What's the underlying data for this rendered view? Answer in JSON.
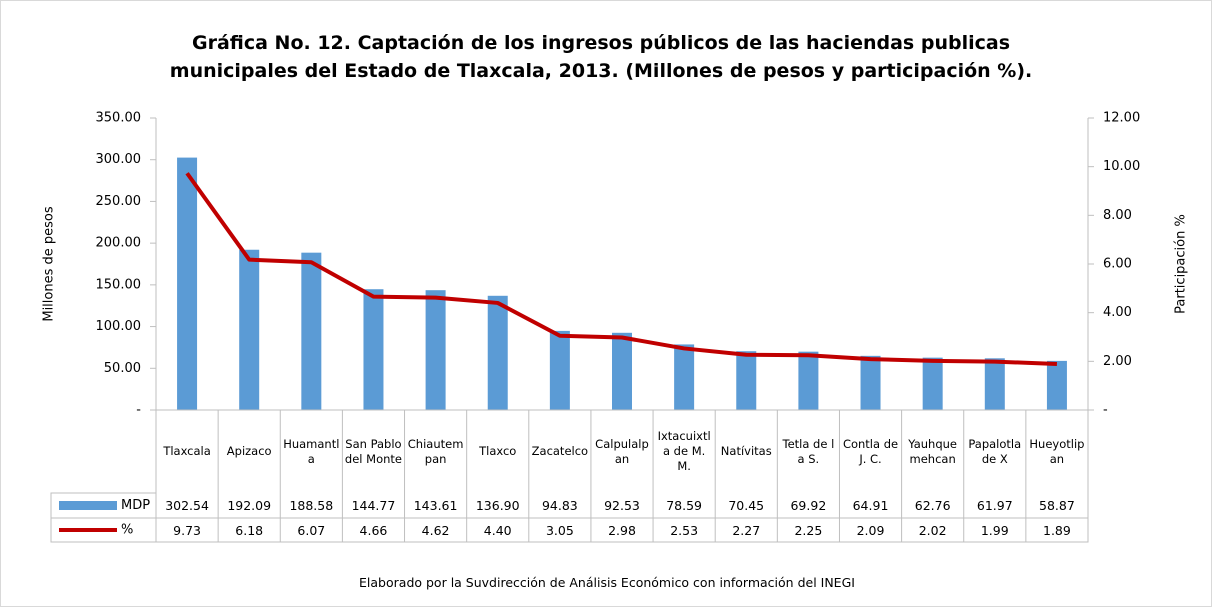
{
  "chart_data": {
    "type": "bar-line",
    "title": "Gráfica No. 12. Captación de los ingresos públicos de las haciendas publicas municipales del Estado de Tlaxcala, 2013. (Millones de pesos y participación %).",
    "y_label": "Millones de pesos",
    "y2_label": "Participación %",
    "footnote": "Elaborado por la Suvdirección de Análisis Económico con información del INEGI",
    "categories": [
      "Tlaxcala",
      "Apizaco",
      "Huamantla",
      "San Pablo del Monte",
      "Chiautempan",
      "Tlaxco",
      "Zacatelco",
      "Calpulalpan",
      "Ixtacuixtla de M. M.",
      "Natívitas",
      "Tetla de la S.",
      "Contla de J. C.",
      "Yauhquemehcan",
      "Papalotla de X",
      "Hueyotlipan"
    ],
    "series": [
      {
        "name": "MDP",
        "type": "bar",
        "color": "#5b9bd5",
        "values": [
          302.54,
          192.09,
          188.58,
          144.77,
          143.61,
          136.9,
          94.83,
          92.53,
          78.59,
          70.45,
          69.92,
          64.91,
          62.76,
          61.97,
          58.87
        ],
        "value_labels": [
          "302.54",
          "192.09",
          "188.58",
          "144.77",
          "143.61",
          "136.90",
          "94.83",
          "92.53",
          "78.59",
          "70.45",
          "69.92",
          "64.91",
          "62.76",
          "61.97",
          "58.87"
        ]
      },
      {
        "name": "%",
        "type": "line",
        "axis": "y2",
        "color": "#c00000",
        "values": [
          9.73,
          6.18,
          6.07,
          4.66,
          4.62,
          4.4,
          3.05,
          2.98,
          2.53,
          2.27,
          2.25,
          2.09,
          2.02,
          1.99,
          1.89
        ],
        "value_labels": [
          "9.73",
          "6.18",
          "6.07",
          "4.66",
          "4.62",
          "4.40",
          "3.05",
          "2.98",
          "2.53",
          "2.27",
          "2.25",
          "2.09",
          "2.02",
          "1.99",
          "1.89"
        ]
      }
    ],
    "ylim": [
      0,
      350
    ],
    "yticks": [
      {
        "value": 0,
        "label": "-"
      },
      {
        "value": 50,
        "label": "50.00"
      },
      {
        "value": 100,
        "label": "100.00"
      },
      {
        "value": 150,
        "label": "150.00"
      },
      {
        "value": 200,
        "label": "200.00"
      },
      {
        "value": 250,
        "label": "250.00"
      },
      {
        "value": 300,
        "label": "300.00"
      },
      {
        "value": 350,
        "label": "350.00"
      }
    ],
    "y2lim": [
      0,
      12
    ],
    "y2ticks": [
      {
        "value": 0,
        "label": "-"
      },
      {
        "value": 2,
        "label": "2.00"
      },
      {
        "value": 4,
        "label": "4.00"
      },
      {
        "value": 6,
        "label": "6.00"
      },
      {
        "value": 8,
        "label": "8.00"
      },
      {
        "value": 10,
        "label": "10.00"
      },
      {
        "value": 12,
        "label": "12.00"
      }
    ],
    "grid": false
  }
}
